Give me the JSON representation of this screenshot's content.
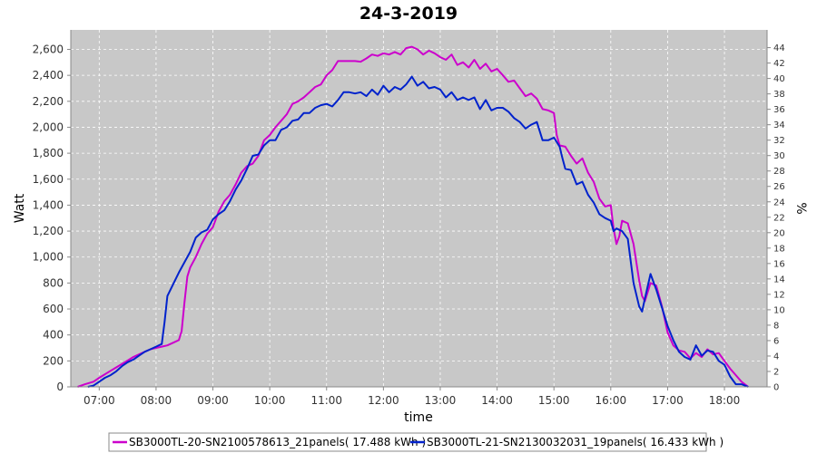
{
  "chart_data": {
    "type": "line",
    "title": "24-3-2019",
    "xlabel": "time",
    "ylabel": "Watt",
    "ylabel_right": "%",
    "xlim": [
      6.5,
      18.75
    ],
    "ylim": [
      0,
      2750
    ],
    "ylim_right": [
      0,
      46.3
    ],
    "x_ticks": [
      {
        "value": 7,
        "label": "07:00"
      },
      {
        "value": 8,
        "label": "08:00"
      },
      {
        "value": 9,
        "label": "09:00"
      },
      {
        "value": 10,
        "label": "10:00"
      },
      {
        "value": 11,
        "label": "11:00"
      },
      {
        "value": 12,
        "label": "12:00"
      },
      {
        "value": 13,
        "label": "13:00"
      },
      {
        "value": 14,
        "label": "14:00"
      },
      {
        "value": 15,
        "label": "15:00"
      },
      {
        "value": 16,
        "label": "16:00"
      },
      {
        "value": 17,
        "label": "17:00"
      },
      {
        "value": 18,
        "label": "18:00"
      }
    ],
    "y_ticks": [
      {
        "value": 0,
        "label": "0"
      },
      {
        "value": 200,
        "label": "200"
      },
      {
        "value": 400,
        "label": "400"
      },
      {
        "value": 600,
        "label": "600"
      },
      {
        "value": 800,
        "label": "800"
      },
      {
        "value": 1000,
        "label": "1,000"
      },
      {
        "value": 1200,
        "label": "1,200"
      },
      {
        "value": 1400,
        "label": "1,400"
      },
      {
        "value": 1600,
        "label": "1,600"
      },
      {
        "value": 1800,
        "label": "1,800"
      },
      {
        "value": 2000,
        "label": "2,000"
      },
      {
        "value": 2200,
        "label": "2,200"
      },
      {
        "value": 2400,
        "label": "2,400"
      },
      {
        "value": 2600,
        "label": "2,600"
      }
    ],
    "y_ticks_right": [
      "0",
      "2",
      "4",
      "6",
      "8",
      "10",
      "12",
      "14",
      "16",
      "18",
      "20",
      "22",
      "24",
      "26",
      "28",
      "30",
      "32",
      "34",
      "36",
      "38",
      "40",
      "42",
      "44"
    ],
    "grid": true,
    "legend_position": "bottom",
    "series": [
      {
        "name": "SB3000TL-20-SN2100578613_21panels",
        "energy": "17.488 kWh",
        "color": "#cc00cc",
        "points": [
          [
            6.62,
            0
          ],
          [
            6.75,
            20
          ],
          [
            6.9,
            40
          ],
          [
            7.0,
            70
          ],
          [
            7.15,
            110
          ],
          [
            7.3,
            150
          ],
          [
            7.45,
            190
          ],
          [
            7.6,
            230
          ],
          [
            7.75,
            260
          ],
          [
            7.9,
            290
          ],
          [
            8.0,
            300
          ],
          [
            8.1,
            310
          ],
          [
            8.2,
            320
          ],
          [
            8.3,
            340
          ],
          [
            8.4,
            360
          ],
          [
            8.45,
            430
          ],
          [
            8.5,
            650
          ],
          [
            8.55,
            850
          ],
          [
            8.6,
            920
          ],
          [
            8.7,
            1000
          ],
          [
            8.8,
            1100
          ],
          [
            8.9,
            1180
          ],
          [
            9.0,
            1230
          ],
          [
            9.1,
            1350
          ],
          [
            9.2,
            1430
          ],
          [
            9.3,
            1480
          ],
          [
            9.4,
            1560
          ],
          [
            9.5,
            1650
          ],
          [
            9.6,
            1700
          ],
          [
            9.7,
            1720
          ],
          [
            9.8,
            1780
          ],
          [
            9.9,
            1900
          ],
          [
            10.0,
            1940
          ],
          [
            10.1,
            2000
          ],
          [
            10.2,
            2050
          ],
          [
            10.3,
            2100
          ],
          [
            10.4,
            2180
          ],
          [
            10.5,
            2200
          ],
          [
            10.6,
            2230
          ],
          [
            10.7,
            2270
          ],
          [
            10.8,
            2310
          ],
          [
            10.9,
            2330
          ],
          [
            11.0,
            2400
          ],
          [
            11.1,
            2440
          ],
          [
            11.2,
            2510
          ],
          [
            11.3,
            2510
          ],
          [
            11.4,
            2510
          ],
          [
            11.5,
            2510
          ],
          [
            11.6,
            2505
          ],
          [
            11.7,
            2530
          ],
          [
            11.8,
            2560
          ],
          [
            11.9,
            2550
          ],
          [
            12.0,
            2570
          ],
          [
            12.1,
            2560
          ],
          [
            12.2,
            2580
          ],
          [
            12.3,
            2560
          ],
          [
            12.4,
            2610
          ],
          [
            12.5,
            2620
          ],
          [
            12.6,
            2600
          ],
          [
            12.7,
            2560
          ],
          [
            12.8,
            2590
          ],
          [
            12.9,
            2570
          ],
          [
            13.0,
            2540
          ],
          [
            13.1,
            2520
          ],
          [
            13.2,
            2560
          ],
          [
            13.3,
            2480
          ],
          [
            13.4,
            2500
          ],
          [
            13.5,
            2460
          ],
          [
            13.6,
            2520
          ],
          [
            13.7,
            2450
          ],
          [
            13.8,
            2490
          ],
          [
            13.9,
            2430
          ],
          [
            14.0,
            2450
          ],
          [
            14.1,
            2400
          ],
          [
            14.2,
            2350
          ],
          [
            14.3,
            2360
          ],
          [
            14.4,
            2300
          ],
          [
            14.5,
            2240
          ],
          [
            14.6,
            2260
          ],
          [
            14.7,
            2220
          ],
          [
            14.8,
            2140
          ],
          [
            14.9,
            2130
          ],
          [
            15.0,
            2110
          ],
          [
            15.05,
            1940
          ],
          [
            15.1,
            1860
          ],
          [
            15.2,
            1850
          ],
          [
            15.3,
            1780
          ],
          [
            15.4,
            1720
          ],
          [
            15.5,
            1760
          ],
          [
            15.6,
            1650
          ],
          [
            15.7,
            1580
          ],
          [
            15.8,
            1450
          ],
          [
            15.9,
            1390
          ],
          [
            16.0,
            1400
          ],
          [
            16.05,
            1220
          ],
          [
            16.1,
            1100
          ],
          [
            16.15,
            1160
          ],
          [
            16.2,
            1280
          ],
          [
            16.3,
            1260
          ],
          [
            16.4,
            1100
          ],
          [
            16.5,
            820
          ],
          [
            16.55,
            700
          ],
          [
            16.6,
            660
          ],
          [
            16.7,
            800
          ],
          [
            16.8,
            780
          ],
          [
            16.9,
            620
          ],
          [
            17.0,
            420
          ],
          [
            17.1,
            320
          ],
          [
            17.2,
            280
          ],
          [
            17.3,
            270
          ],
          [
            17.4,
            220
          ],
          [
            17.5,
            260
          ],
          [
            17.6,
            230
          ],
          [
            17.7,
            290
          ],
          [
            17.8,
            250
          ],
          [
            17.9,
            260
          ],
          [
            18.0,
            200
          ],
          [
            18.1,
            140
          ],
          [
            18.2,
            90
          ],
          [
            18.3,
            40
          ],
          [
            18.42,
            0
          ]
        ]
      },
      {
        "name": "SB3000TL-21-SN2130032031_19panels",
        "energy": "16.433 kWh",
        "color": "#0022cc",
        "points": [
          [
            6.8,
            0
          ],
          [
            6.9,
            10
          ],
          [
            7.0,
            40
          ],
          [
            7.1,
            70
          ],
          [
            7.2,
            90
          ],
          [
            7.3,
            120
          ],
          [
            7.4,
            160
          ],
          [
            7.5,
            190
          ],
          [
            7.6,
            210
          ],
          [
            7.7,
            240
          ],
          [
            7.8,
            270
          ],
          [
            7.9,
            290
          ],
          [
            8.0,
            310
          ],
          [
            8.1,
            330
          ],
          [
            8.15,
            500
          ],
          [
            8.2,
            700
          ],
          [
            8.3,
            790
          ],
          [
            8.4,
            880
          ],
          [
            8.5,
            960
          ],
          [
            8.6,
            1040
          ],
          [
            8.7,
            1150
          ],
          [
            8.8,
            1190
          ],
          [
            8.9,
            1210
          ],
          [
            9.0,
            1290
          ],
          [
            9.1,
            1330
          ],
          [
            9.2,
            1360
          ],
          [
            9.3,
            1430
          ],
          [
            9.4,
            1520
          ],
          [
            9.5,
            1590
          ],
          [
            9.6,
            1680
          ],
          [
            9.7,
            1780
          ],
          [
            9.8,
            1790
          ],
          [
            9.9,
            1860
          ],
          [
            10.0,
            1900
          ],
          [
            10.1,
            1900
          ],
          [
            10.2,
            1980
          ],
          [
            10.3,
            2000
          ],
          [
            10.4,
            2050
          ],
          [
            10.5,
            2060
          ],
          [
            10.6,
            2110
          ],
          [
            10.7,
            2110
          ],
          [
            10.8,
            2150
          ],
          [
            10.9,
            2170
          ],
          [
            11.0,
            2180
          ],
          [
            11.1,
            2160
          ],
          [
            11.2,
            2210
          ],
          [
            11.3,
            2270
          ],
          [
            11.4,
            2270
          ],
          [
            11.5,
            2260
          ],
          [
            11.6,
            2270
          ],
          [
            11.7,
            2240
          ],
          [
            11.8,
            2290
          ],
          [
            11.9,
            2250
          ],
          [
            12.0,
            2320
          ],
          [
            12.1,
            2270
          ],
          [
            12.2,
            2310
          ],
          [
            12.3,
            2290
          ],
          [
            12.4,
            2330
          ],
          [
            12.5,
            2390
          ],
          [
            12.6,
            2320
          ],
          [
            12.7,
            2350
          ],
          [
            12.8,
            2300
          ],
          [
            12.9,
            2310
          ],
          [
            13.0,
            2290
          ],
          [
            13.1,
            2230
          ],
          [
            13.2,
            2270
          ],
          [
            13.3,
            2210
          ],
          [
            13.4,
            2230
          ],
          [
            13.5,
            2210
          ],
          [
            13.6,
            2230
          ],
          [
            13.7,
            2140
          ],
          [
            13.8,
            2210
          ],
          [
            13.9,
            2130
          ],
          [
            14.0,
            2150
          ],
          [
            14.1,
            2150
          ],
          [
            14.2,
            2120
          ],
          [
            14.3,
            2070
          ],
          [
            14.4,
            2040
          ],
          [
            14.5,
            1990
          ],
          [
            14.6,
            2020
          ],
          [
            14.7,
            2040
          ],
          [
            14.8,
            1900
          ],
          [
            14.9,
            1900
          ],
          [
            15.0,
            1920
          ],
          [
            15.1,
            1850
          ],
          [
            15.15,
            1760
          ],
          [
            15.2,
            1680
          ],
          [
            15.3,
            1670
          ],
          [
            15.4,
            1560
          ],
          [
            15.5,
            1580
          ],
          [
            15.6,
            1480
          ],
          [
            15.7,
            1420
          ],
          [
            15.8,
            1330
          ],
          [
            15.9,
            1300
          ],
          [
            16.0,
            1280
          ],
          [
            16.05,
            1200
          ],
          [
            16.1,
            1220
          ],
          [
            16.2,
            1200
          ],
          [
            16.3,
            1140
          ],
          [
            16.4,
            800
          ],
          [
            16.5,
            620
          ],
          [
            16.55,
            580
          ],
          [
            16.6,
            680
          ],
          [
            16.7,
            870
          ],
          [
            16.8,
            750
          ],
          [
            16.9,
            610
          ],
          [
            17.0,
            470
          ],
          [
            17.1,
            360
          ],
          [
            17.2,
            270
          ],
          [
            17.3,
            230
          ],
          [
            17.4,
            210
          ],
          [
            17.5,
            320
          ],
          [
            17.6,
            240
          ],
          [
            17.7,
            280
          ],
          [
            17.8,
            270
          ],
          [
            17.9,
            200
          ],
          [
            18.0,
            170
          ],
          [
            18.1,
            80
          ],
          [
            18.2,
            20
          ],
          [
            18.3,
            20
          ],
          [
            18.42,
            0
          ]
        ]
      }
    ]
  }
}
